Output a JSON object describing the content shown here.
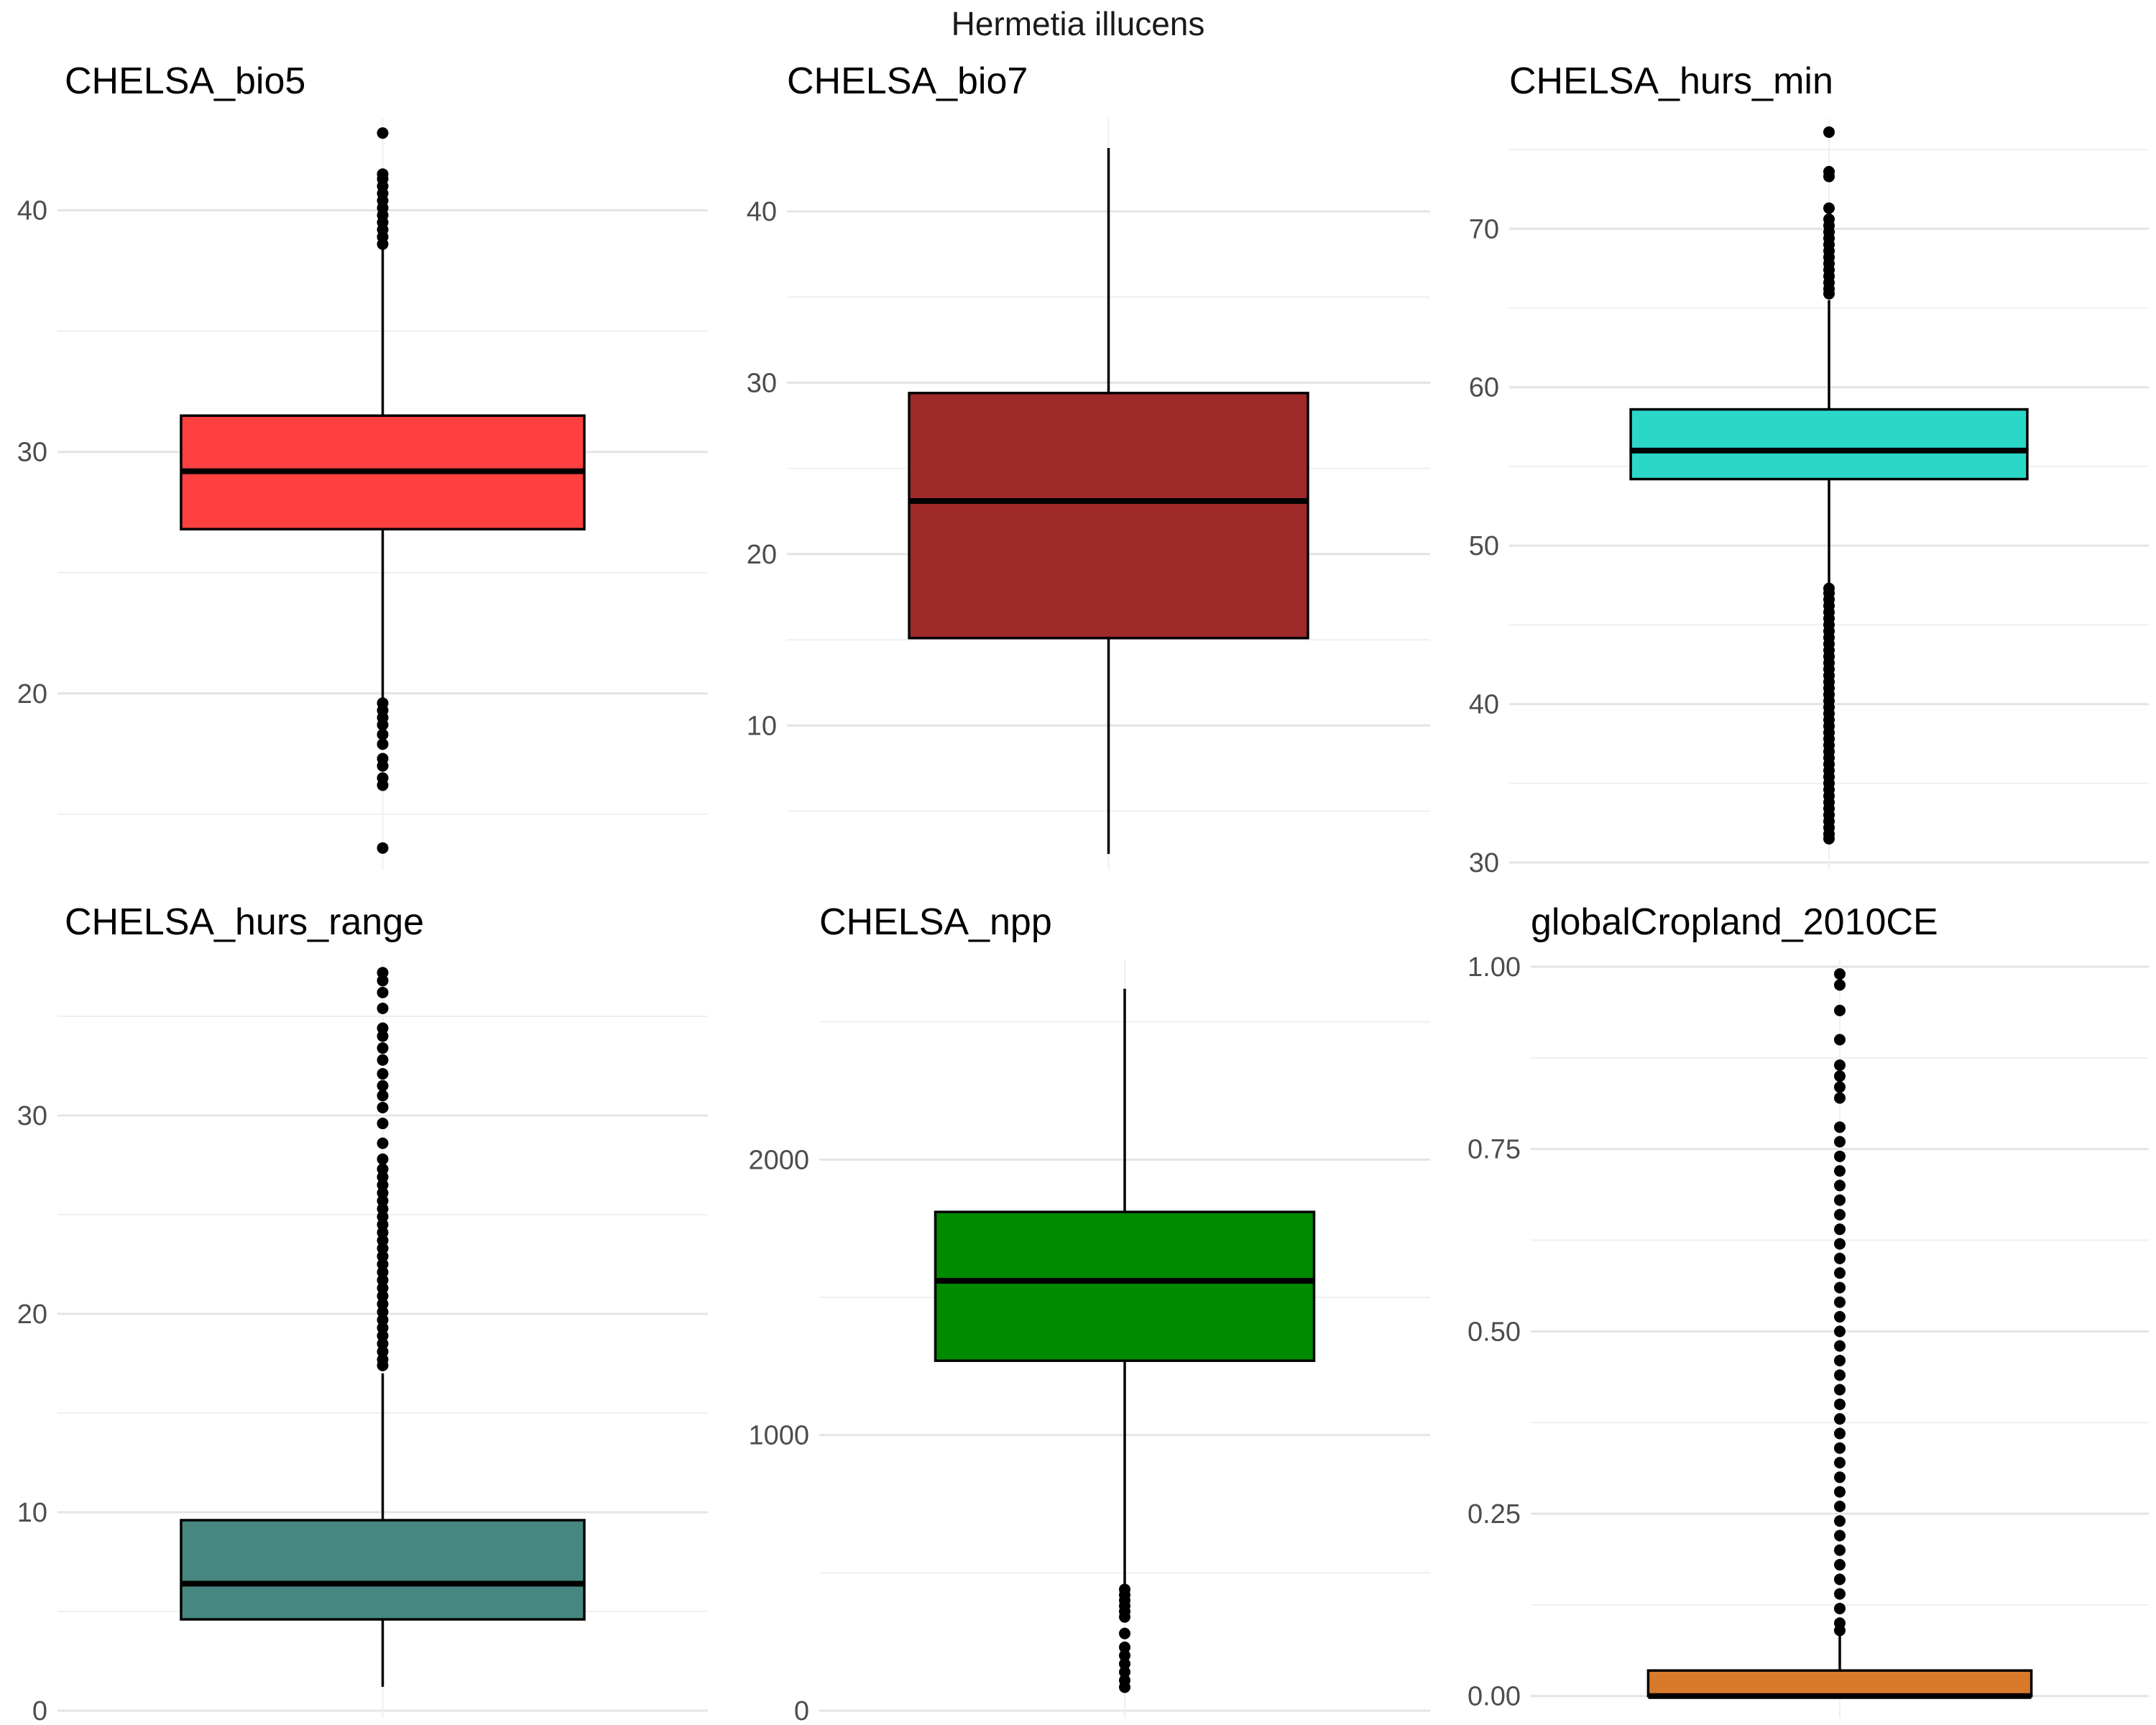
{
  "figure": {
    "title": "Hermetia illucens"
  },
  "chart_data": [
    {
      "type": "box",
      "title": "CHELSA_bio5",
      "color": "#FF4040",
      "ylim": [
        13,
        43.5
      ],
      "ticks": [
        20,
        30,
        40
      ],
      "box": {
        "whisker_low": 19.8,
        "q1": 26.8,
        "median": 29.2,
        "q3": 31.5,
        "whisker_high": 38.5
      },
      "outliers": [
        43.2,
        41.5,
        41.3,
        41.0,
        40.7,
        40.4,
        40.1,
        39.8,
        39.5,
        39.2,
        38.9,
        38.6,
        19.6,
        19.3,
        19.0,
        18.7,
        18.3,
        17.9,
        17.3,
        17.0,
        16.5,
        16.2,
        13.6
      ]
    },
    {
      "type": "box",
      "title": "CHELSA_bio7",
      "color": "#A0292A",
      "ylim": [
        2,
        45
      ],
      "ticks": [
        10,
        20,
        30,
        40
      ],
      "box": {
        "whisker_low": 2.5,
        "q1": 15.1,
        "median": 23.1,
        "q3": 29.4,
        "whisker_high": 43.7
      },
      "outliers": []
    },
    {
      "type": "box",
      "title": "CHELSA_hurs_min",
      "color": "#2BD8C8",
      "ylim": [
        30,
        76.5
      ],
      "ticks": [
        30,
        40,
        50,
        60,
        70
      ],
      "box": {
        "whisker_low": 47.5,
        "q1": 54.2,
        "median": 56.0,
        "q3": 58.6,
        "whisker_high": 65.5
      },
      "outliers": [
        76.1,
        73.6,
        73.3,
        71.3,
        70.6,
        70.2,
        69.8,
        69.4,
        69.0,
        68.6,
        68.2,
        67.8,
        67.4,
        67.0,
        66.6,
        66.2,
        65.9,
        47.3,
        47.0,
        46.6,
        46.2,
        45.8,
        45.4,
        45.0,
        44.6,
        44.2,
        43.8,
        43.4,
        43.0,
        42.6,
        42.2,
        41.8,
        41.4,
        41.0,
        40.6,
        40.2,
        39.8,
        39.4,
        39.0,
        38.6,
        38.2,
        37.8,
        37.4,
        37.0,
        36.6,
        36.2,
        35.8,
        35.4,
        35.0,
        34.6,
        34.2,
        33.8,
        33.4,
        33.0,
        32.6,
        32.2,
        31.8,
        31.5
      ]
    },
    {
      "type": "box",
      "title": "CHELSA_hurs_range",
      "color": "#468880",
      "ylim": [
        0,
        37.5
      ],
      "ticks": [
        0,
        10,
        20,
        30
      ],
      "box": {
        "whisker_low": 1.2,
        "q1": 4.6,
        "median": 6.4,
        "q3": 9.6,
        "whisker_high": 17.0
      },
      "outliers": [
        37.2,
        36.8,
        36.2,
        35.4,
        34.4,
        34.0,
        33.4,
        32.8,
        32.1,
        31.5,
        31.0,
        30.4,
        29.6,
        28.6,
        27.8,
        27.3,
        26.9,
        26.5,
        26.1,
        25.7,
        25.3,
        24.9,
        24.5,
        24.1,
        23.7,
        23.3,
        22.9,
        22.5,
        22.1,
        21.7,
        21.3,
        20.9,
        20.5,
        20.1,
        19.7,
        19.3,
        18.9,
        18.5,
        18.1,
        17.7,
        17.4
      ]
    },
    {
      "type": "box",
      "title": "CHELSA_npp",
      "color": "#008A00",
      "ylim": [
        0,
        2700
      ],
      "ticks": [
        0,
        1000,
        2000
      ],
      "box": {
        "whisker_low": 460,
        "q1": 1270,
        "median": 1560,
        "q3": 1810,
        "whisker_high": 2620
      },
      "outliers": [
        440,
        420,
        400,
        380,
        360,
        340,
        280,
        230,
        200,
        170,
        140,
        110,
        85
      ]
    },
    {
      "type": "box",
      "title": "globalCropland_2010CE",
      "color": "#D97A2B",
      "ylim": [
        -0.02,
        1.0
      ],
      "ticks": [
        0.0,
        0.25,
        0.5,
        0.75,
        1.0
      ],
      "tick_labels": [
        "0.00",
        "0.25",
        "0.50",
        "0.75",
        "1.00"
      ],
      "box": {
        "whisker_low": 0.0,
        "q1": 0.0,
        "median": 0.0,
        "q3": 0.035,
        "whisker_high": 0.085
      },
      "outliers": [
        0.99,
        0.975,
        0.94,
        0.9,
        0.865,
        0.85,
        0.835,
        0.82,
        0.78,
        0.76,
        0.74,
        0.72,
        0.7,
        0.68,
        0.66,
        0.64,
        0.62,
        0.6,
        0.58,
        0.56,
        0.54,
        0.52,
        0.5,
        0.48,
        0.46,
        0.44,
        0.42,
        0.4,
        0.38,
        0.36,
        0.34,
        0.32,
        0.3,
        0.28,
        0.26,
        0.24,
        0.22,
        0.2,
        0.18,
        0.16,
        0.14,
        0.12,
        0.1,
        0.09
      ]
    }
  ]
}
